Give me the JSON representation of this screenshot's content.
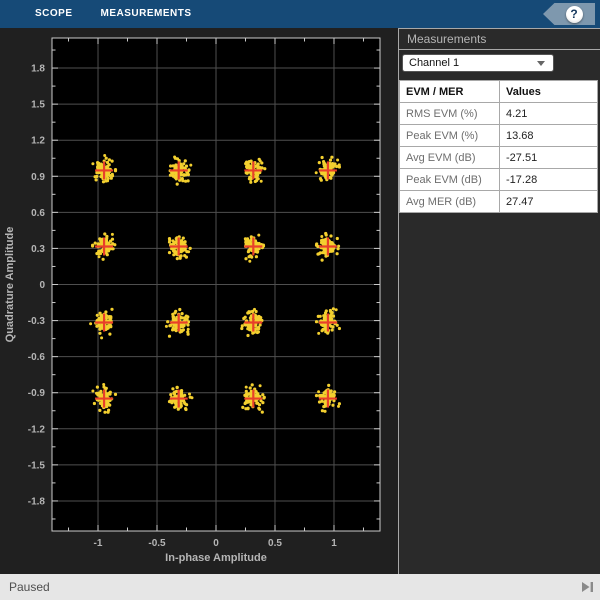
{
  "toolbar": {
    "tabs": [
      {
        "label": "SCOPE"
      },
      {
        "label": "MEASUREMENTS"
      }
    ],
    "help_label": "?"
  },
  "panel": {
    "title": "Measurements",
    "channel_select": {
      "value": "Channel 1"
    },
    "table": {
      "headers": [
        "EVM / MER",
        "Values"
      ],
      "rows": [
        [
          "RMS EVM (%)",
          "4.21"
        ],
        [
          "Peak EVM (%)",
          "13.68"
        ],
        [
          "Avg EVM (dB)",
          "-27.51"
        ],
        [
          "Peak EVM (dB)",
          "-17.28"
        ],
        [
          "Avg MER (dB)",
          "27.47"
        ]
      ]
    }
  },
  "status_bar": {
    "text": "Paused",
    "step_icon": "step-forward-icon"
  },
  "colors": {
    "tab_bar": "#164a77",
    "tab_text": "#ffffff",
    "help_badge": "#7e98ae",
    "help_q": "#16395e",
    "figure_bg": "#202020",
    "panel_bg": "#2a2a2a",
    "panel_border": "#a8a8a8",
    "panel_title": "#b5b5b5",
    "table_border": "#a8a8a8",
    "metric_text": "#6e6e6e",
    "value_text": "#222222",
    "status_bg": "#e6e6e6",
    "status_text": "#4f4f4f",
    "icon_gray": "#8a8a8a"
  },
  "chart_data": {
    "type": "scatter",
    "title": "",
    "xlabel": "In-phase Amplitude",
    "ylabel": "Quadrature Amplitude",
    "xlim": [
      -1.39,
      1.39
    ],
    "ylim": [
      -2.05,
      2.05
    ],
    "x_major_ticks": [
      -1,
      -0.5,
      0,
      0.5,
      1
    ],
    "x_minor_ticks": [
      -1.25,
      -0.75,
      -0.25,
      0.25,
      0.75,
      1.25
    ],
    "y_major_ticks": [
      -1.8,
      -1.5,
      -1.2,
      -0.9,
      -0.6,
      -0.3,
      0,
      0.3,
      0.6,
      0.9,
      1.2,
      1.5,
      1.8
    ],
    "y_minor_ticks": [
      -1.95,
      -1.65,
      -1.35,
      -1.05,
      -0.75,
      -0.45,
      -0.15,
      0.15,
      0.45,
      0.75,
      1.05,
      1.35,
      1.65,
      1.95
    ],
    "grid": true,
    "legend": "none",
    "reference_points": [
      [
        -0.9487,
        0.9487
      ],
      [
        -0.3162,
        0.9487
      ],
      [
        0.3162,
        0.9487
      ],
      [
        0.9487,
        0.9487
      ],
      [
        -0.9487,
        0.3162
      ],
      [
        -0.3162,
        0.3162
      ],
      [
        0.3162,
        0.3162
      ],
      [
        0.9487,
        0.3162
      ],
      [
        -0.9487,
        -0.3162
      ],
      [
        -0.3162,
        -0.3162
      ],
      [
        0.3162,
        -0.3162
      ],
      [
        0.9487,
        -0.3162
      ],
      [
        -0.9487,
        -0.9487
      ],
      [
        -0.3162,
        -0.9487
      ],
      [
        0.3162,
        -0.9487
      ],
      [
        0.9487,
        -0.9487
      ]
    ],
    "cluster_std_x": 0.036,
    "cluster_std_y": 0.042,
    "points_per_cluster": 85,
    "outliers_per_cluster": 2,
    "colors": {
      "background": "#000000",
      "grid": "#4f4f4f",
      "box": "#cbcbcb",
      "tick_text": "#b5b5b5",
      "data": "#f3d02f",
      "reference": "#e8402a"
    }
  }
}
